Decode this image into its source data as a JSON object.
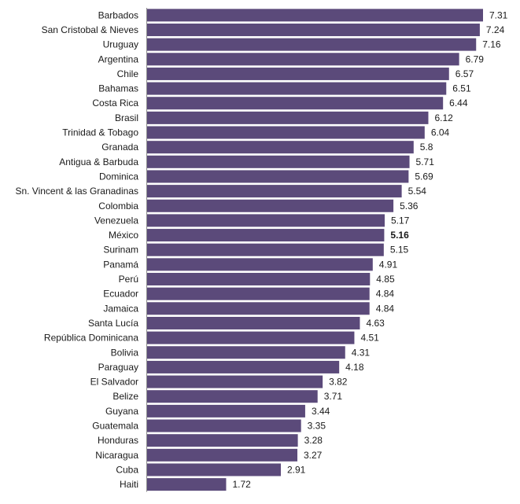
{
  "chart_data": {
    "type": "bar",
    "orientation": "horizontal",
    "title": "",
    "xlabel": "",
    "ylabel": "",
    "xlim": [
      0,
      7.31
    ],
    "grid": false,
    "legend": "none",
    "bar_color": "#5b4a7a",
    "highlight_category": "México",
    "categories": [
      "Barbados",
      "San Cristobal & Nieves",
      "Uruguay",
      "Argentina",
      "Chile",
      "Bahamas",
      "Costa Rica",
      "Brasil",
      "Trinidad & Tobago",
      "Granada",
      "Antigua & Barbuda",
      "Dominica",
      "Sn. Vincent & las Granadinas",
      "Colombia",
      "Venezuela",
      "México",
      "Surinam",
      "Panamá",
      "Perú",
      "Ecuador",
      "Jamaica",
      "Santa Lucía",
      "República Dominicana",
      "Bolivia",
      "Paraguay",
      "El Salvador",
      "Belize",
      "Guyana",
      "Guatemala",
      "Honduras",
      "Nicaragua",
      "Cuba",
      "Haiti"
    ],
    "values": [
      7.31,
      7.24,
      7.16,
      6.79,
      6.57,
      6.51,
      6.44,
      6.12,
      6.04,
      5.8,
      5.71,
      5.69,
      5.54,
      5.36,
      5.17,
      5.16,
      5.15,
      4.91,
      4.85,
      4.84,
      4.84,
      4.63,
      4.51,
      4.31,
      4.18,
      3.82,
      3.71,
      3.44,
      3.35,
      3.28,
      3.27,
      2.91,
      1.72
    ],
    "value_labels": [
      "7.31",
      "7.24",
      "7.16",
      "6.79",
      "6.57",
      "6.51",
      "6.44",
      "6.12",
      "6.04",
      "5.8",
      "5.71",
      "5.69",
      "5.54",
      "5.36",
      "5.17",
      "5.16",
      "5.15",
      "4.91",
      "4.85",
      "4.84",
      "4.84",
      "4.63",
      "4.51",
      "4.31",
      "4.18",
      "3.82",
      "3.71",
      "3.44",
      "3.35",
      "3.28",
      "3.27",
      "2.91",
      "1.72"
    ]
  }
}
